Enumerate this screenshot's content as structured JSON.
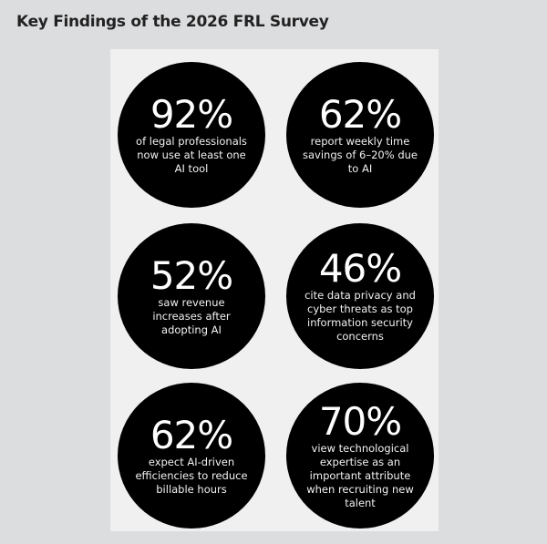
{
  "title": "Key Findings of the 2026 FRL Survey",
  "findings": [
    {
      "value": "92%",
      "text": "of legal professionals now use at least one AI tool"
    },
    {
      "value": "62%",
      "text": "report weekly time savings of 6–20% due to AI"
    },
    {
      "value": "52%",
      "text": "saw revenue increases after adopting AI"
    },
    {
      "value": "46%",
      "text": "cite data privacy and cyber threats as top information security concerns"
    },
    {
      "value": "62%",
      "text": "expect AI-driven efficiencies to reduce billable hours"
    },
    {
      "value": "70%",
      "text": "view technological expertise as an important attribute when recruiting new talent"
    }
  ]
}
